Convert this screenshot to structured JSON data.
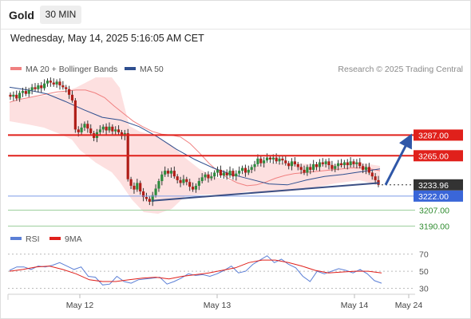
{
  "header": {
    "instrument": "Gold",
    "timeframe": "30 MIN",
    "datetime": "Wednesday, May 14, 2025 5:16:05 AM CET"
  },
  "legend": {
    "ma20_bb_label": "MA 20 + Bollinger Bands",
    "ma20_bb_color": "#f08080",
    "ma50_label": "MA 50",
    "ma50_color": "#2f4f8f",
    "copyright": "Research © 2025 Trading Central"
  },
  "price_levels": [
    {
      "value": 3287.0,
      "label": "3287.00",
      "kind": "resistance",
      "color": "#e0201b"
    },
    {
      "value": 3265.0,
      "label": "3265.00",
      "kind": "resistance",
      "color": "#e0201b"
    },
    {
      "value": 3233.96,
      "label": "3233.96",
      "kind": "last-price",
      "color": "#333333"
    },
    {
      "value": 3222.0,
      "label": "3222.00",
      "kind": "pivot",
      "color": "#3a66d8"
    },
    {
      "value": 3207.0,
      "label": "3207.00",
      "kind": "support",
      "color": "#2e8b2e"
    },
    {
      "value": 3190.0,
      "label": "3190.00",
      "kind": "support",
      "color": "#2e8b2e"
    }
  ],
  "rsi_legend": {
    "rsi_label": "RSI",
    "rsi_color": "#5b7fd6",
    "ma9_label": "9MA",
    "ma9_color": "#e0201b"
  },
  "rsi_levels": [
    "70",
    "50",
    "30"
  ],
  "chart_data": {
    "type": "candlestick",
    "instrument": "Gold",
    "timeframe": "30 MIN",
    "y_range": [
      3176,
      3380
    ],
    "x_ticks": [
      "May 12",
      "May 13",
      "May 14",
      "May 24"
    ],
    "series": [
      {
        "name": "Price",
        "close": [
          3328,
          3330,
          3326,
          3332,
          3334,
          3331,
          3335,
          3338,
          3336,
          3340,
          3337,
          3342,
          3345,
          3343,
          3341,
          3344,
          3340,
          3338,
          3336,
          3330,
          3324,
          3293,
          3290,
          3295,
          3299,
          3294,
          3289,
          3284,
          3290,
          3293,
          3296,
          3292,
          3296,
          3291,
          3293,
          3290,
          3286,
          3289,
          3240,
          3233,
          3229,
          3236,
          3227,
          3221,
          3219,
          3216,
          3223,
          3230,
          3238,
          3245,
          3249,
          3246,
          3249,
          3243,
          3239,
          3236,
          3240,
          3237,
          3232,
          3229,
          3233,
          3238,
          3242,
          3245,
          3241,
          3243,
          3247,
          3250,
          3244,
          3247,
          3244,
          3249,
          3243,
          3246,
          3249,
          3252,
          3247,
          3250,
          3253,
          3256,
          3262,
          3257,
          3260,
          3263,
          3261,
          3263,
          3259,
          3262,
          3260,
          3257,
          3254,
          3259,
          3256,
          3253,
          3250,
          3247,
          3253,
          3250,
          3256,
          3253,
          3258,
          3256,
          3259,
          3255,
          3251,
          3254,
          3257,
          3255,
          3258,
          3255,
          3259,
          3256,
          3258,
          3254,
          3250,
          3253,
          3247,
          3243,
          3239,
          3234
        ]
      },
      {
        "name": "MA 20",
        "values": [
          3322,
          3325,
          3327,
          3329,
          3331,
          3333,
          3334,
          3335,
          3335,
          3332,
          3327,
          3318,
          3310,
          3302,
          3296,
          3291,
          3288,
          3287,
          3285,
          3278,
          3268,
          3257,
          3248,
          3241,
          3236,
          3233,
          3234,
          3237,
          3241,
          3244,
          3246,
          3247,
          3248,
          3249,
          3250,
          3251,
          3252,
          3252,
          3251,
          3249
        ]
      },
      {
        "name": "MA 50",
        "values": [
          3338,
          3335,
          3331,
          3323,
          3314,
          3306,
          3303,
          3296,
          3285,
          3272,
          3261,
          3252,
          3245,
          3240,
          3235,
          3234,
          3239,
          3243,
          3245,
          3248,
          3251
        ]
      },
      {
        "name": "Trend line",
        "values": [
          3217,
          3236
        ]
      },
      {
        "name": "Projection",
        "values": [
          3234,
          3287
        ]
      }
    ]
  },
  "rsi_data": {
    "type": "line",
    "y_range": [
      24,
      78
    ],
    "series": [
      {
        "name": "RSI",
        "values": [
          51,
          55,
          55,
          52,
          56,
          55,
          57,
          60,
          56,
          52,
          55,
          44,
          43,
          34,
          35,
          44,
          38,
          36,
          40,
          41,
          42,
          43,
          35,
          38,
          42,
          47,
          45,
          46,
          44,
          47,
          51,
          56,
          48,
          50,
          58,
          63,
          68,
          60,
          64,
          58,
          54,
          44,
          38,
          50,
          47,
          50,
          53,
          51,
          48,
          52,
          47,
          39,
          36
        ]
      },
      {
        "name": "9MA",
        "values": [
          50,
          52,
          55,
          56,
          52,
          47,
          40,
          38,
          38,
          40,
          42,
          43,
          41,
          44,
          46,
          48,
          51,
          54,
          60,
          63,
          63,
          60,
          56,
          51,
          48,
          49,
          50,
          50,
          48
        ]
      }
    ]
  }
}
